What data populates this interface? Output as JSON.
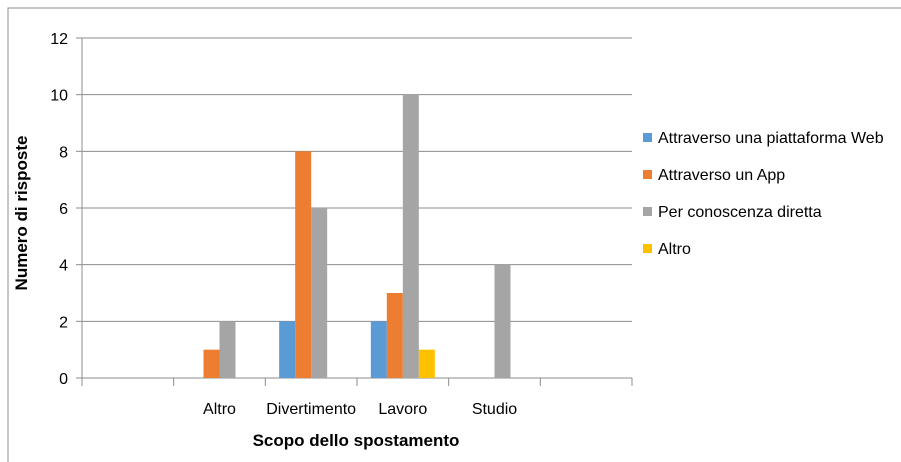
{
  "chart_data": {
    "type": "bar",
    "title": "",
    "xlabel": "Scopo dello spostamento",
    "ylabel": "Numero di risposte",
    "categories": [
      "",
      "Altro",
      "Divertimento",
      "Lavoro",
      "Studio",
      ""
    ],
    "ylim": [
      0,
      12
    ],
    "yticks": [
      0,
      2,
      4,
      6,
      8,
      10,
      12
    ],
    "grid": true,
    "legend_position": "right",
    "series": [
      {
        "name": "Attraverso una piattaforma Web",
        "color": "#5B9BD5",
        "values": [
          0,
          0,
          2,
          2,
          0,
          0
        ]
      },
      {
        "name": "Attraverso un App",
        "color": "#ED7D31",
        "values": [
          0,
          1,
          8,
          3,
          0,
          0
        ]
      },
      {
        "name": "Per conoscenza diretta",
        "color": "#A5A5A5",
        "values": [
          0,
          2,
          6,
          10,
          4,
          0
        ]
      },
      {
        "name": "Altro",
        "color": "#FFC000",
        "values": [
          0,
          0,
          0,
          1,
          0,
          0
        ]
      }
    ]
  }
}
